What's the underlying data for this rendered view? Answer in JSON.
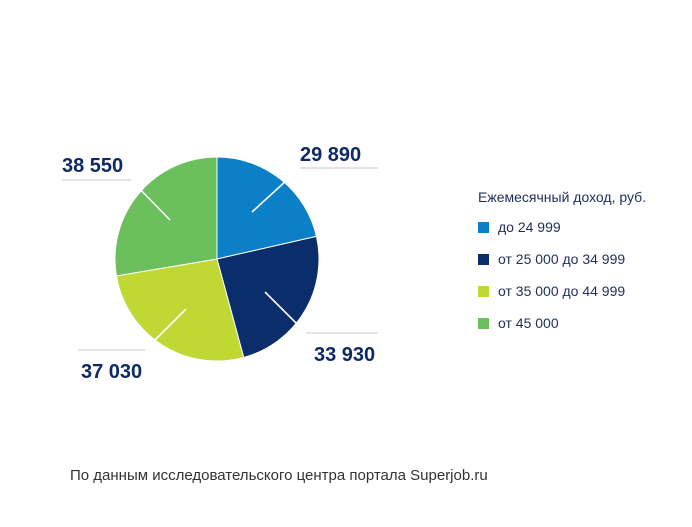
{
  "chart_data": {
    "type": "pie",
    "title": "",
    "slices": [
      {
        "label": "до 24 999",
        "value": 29890,
        "display": "29 890",
        "color": "#0b80c8"
      },
      {
        "label": "от 25 000 до 34 999",
        "value": 33930,
        "display": "33 930",
        "color": "#0b2d6b"
      },
      {
        "label": "от 35 000 до 44 999",
        "value": 37030,
        "display": "37 030",
        "color": "#c0d834"
      },
      {
        "label": "от 45 000",
        "value": 38550,
        "display": "38 550",
        "color": "#6bbf5d"
      }
    ],
    "legend_title": "Ежемесячный доход, руб.",
    "legend_position": "right"
  },
  "footer": {
    "source": "По данным исследовательского центра портала Superjob.ru"
  }
}
